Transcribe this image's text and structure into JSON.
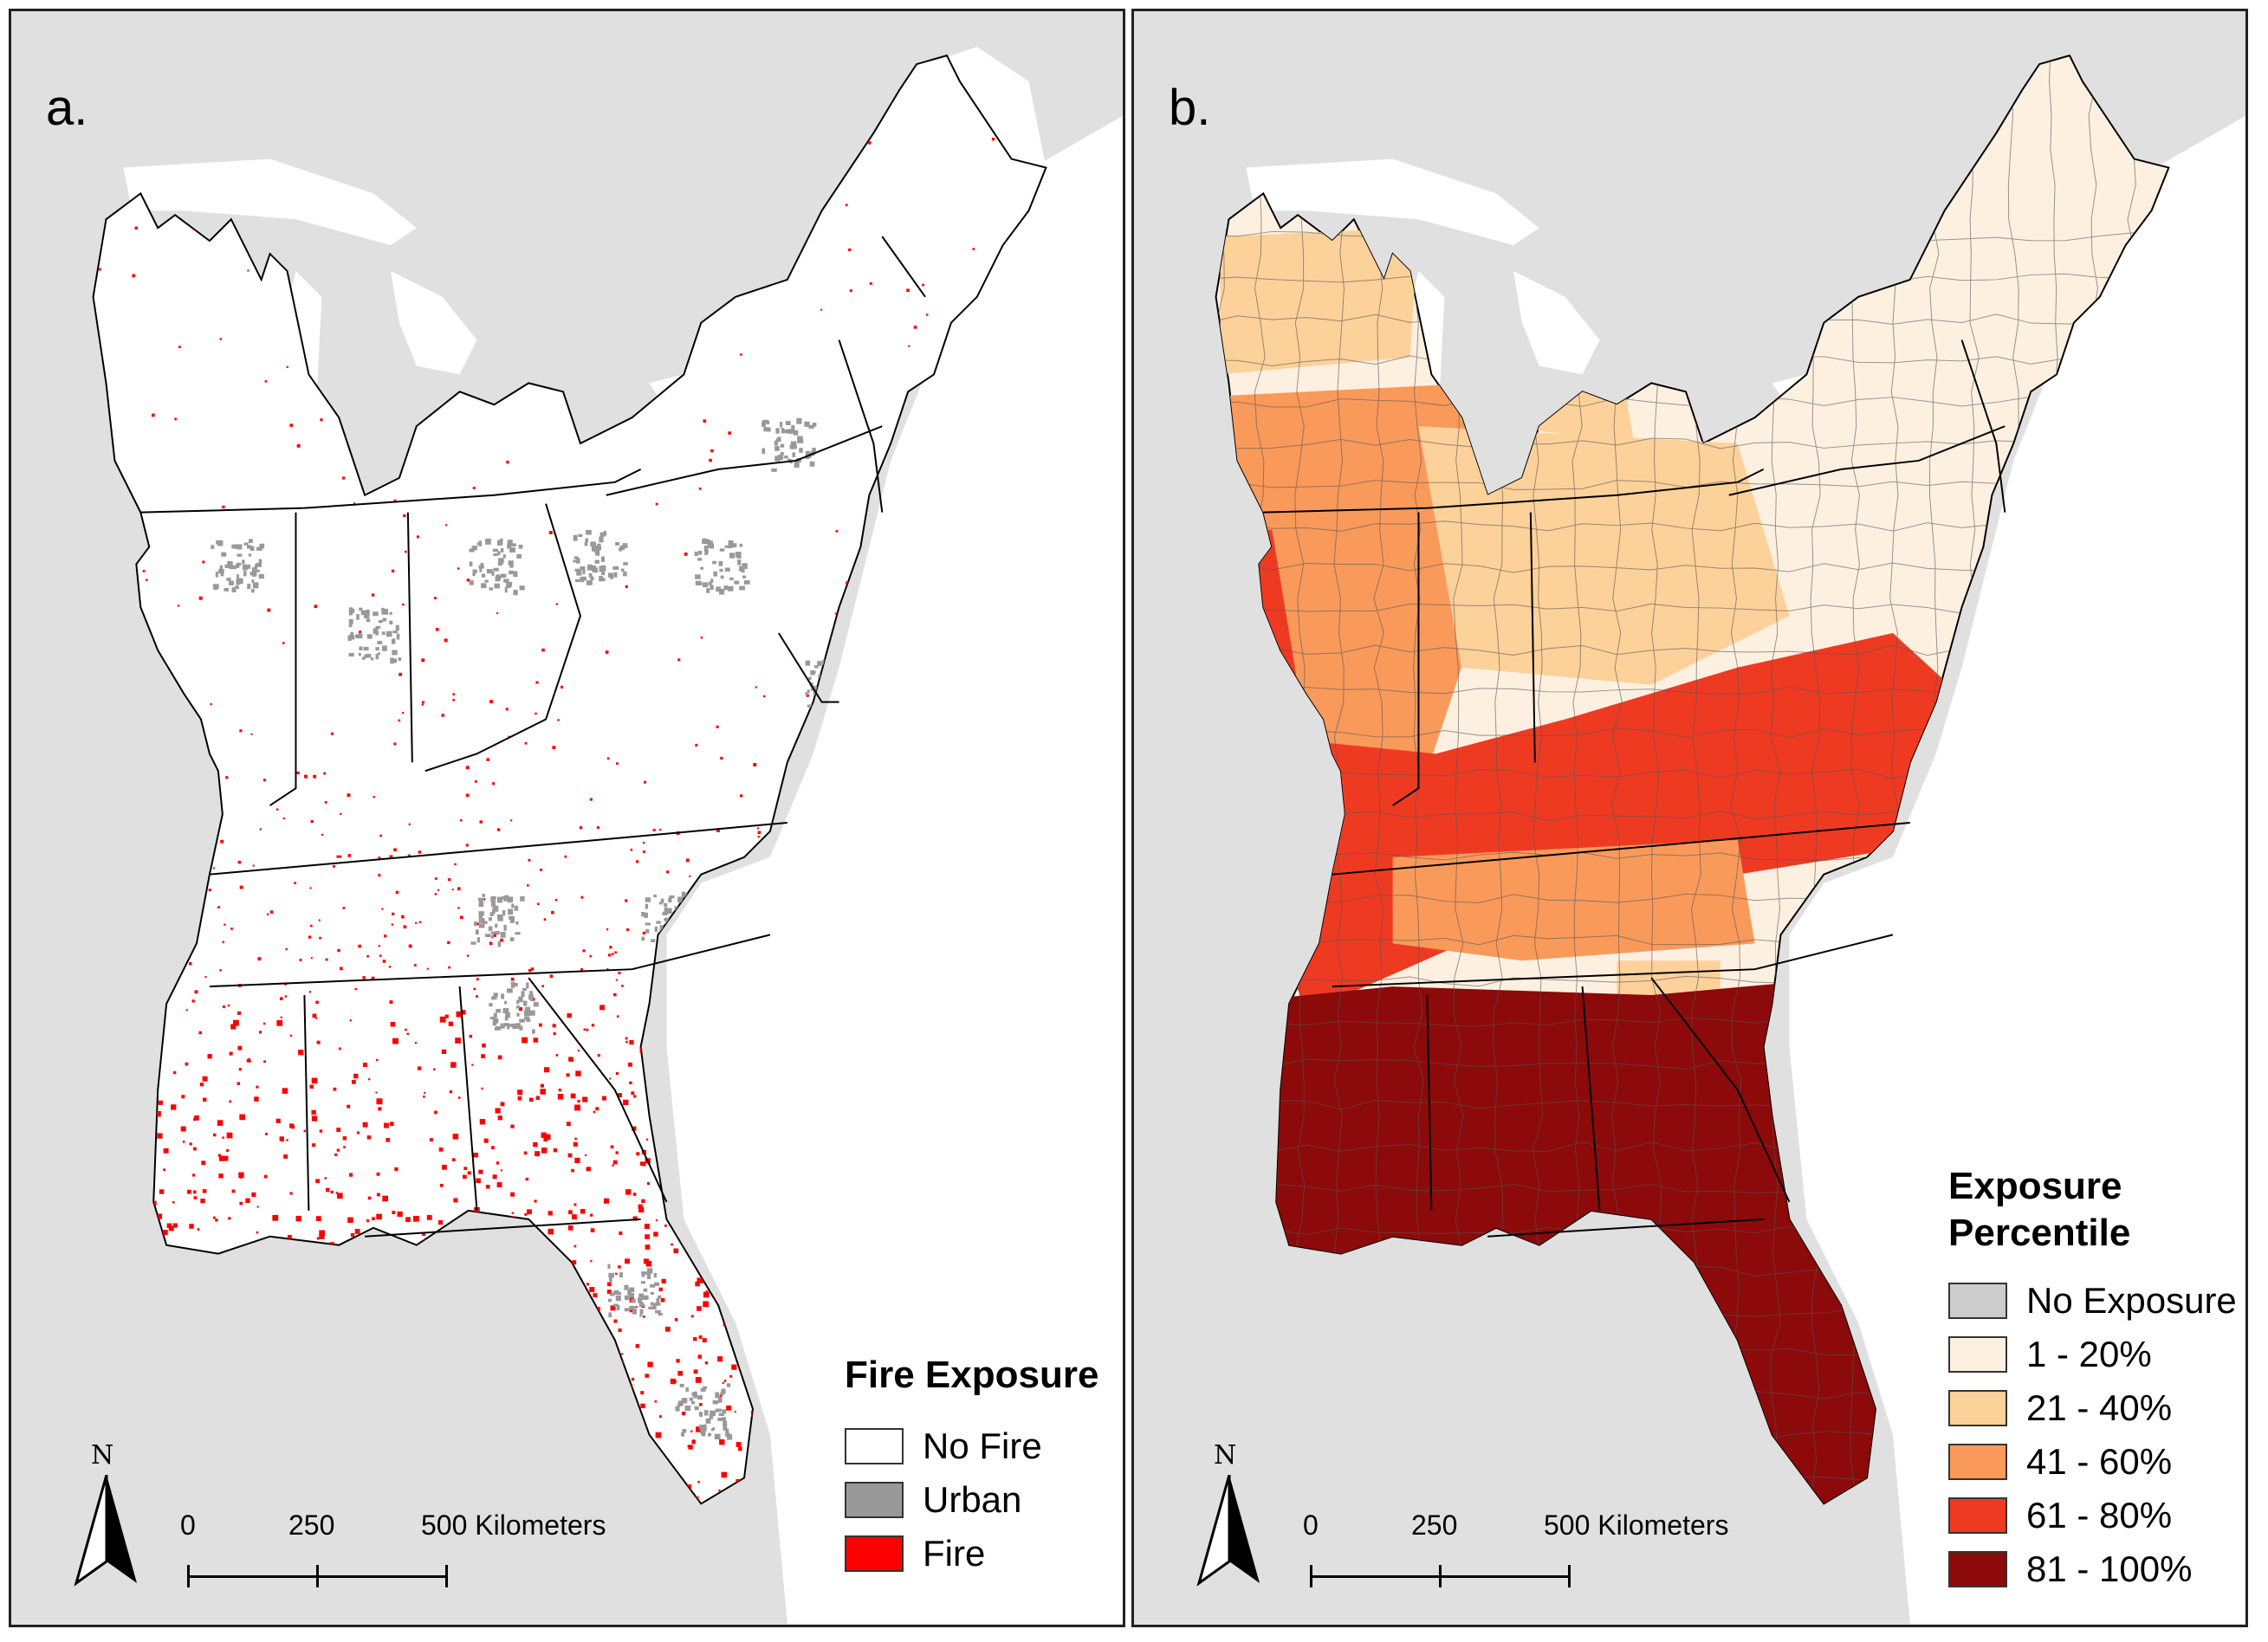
{
  "panels": [
    {
      "letter": "a.",
      "legend_title": "Fire Exposure",
      "legend": [
        {
          "label": "No Fire",
          "color": "#ffffff"
        },
        {
          "label": "Urban",
          "color": "#999999"
        },
        {
          "label": "Fire",
          "color": "#ff0000"
        }
      ]
    },
    {
      "letter": "b.",
      "legend_title_line1": "Exposure",
      "legend_title_line2": "Percentile",
      "legend": [
        {
          "label": "No Exposure",
          "color": "#cccccc"
        },
        {
          "label": "1 - 20%",
          "color": "#fdf0e0"
        },
        {
          "label": "21 - 40%",
          "color": "#fdd19a"
        },
        {
          "label": "41 - 60%",
          "color": "#f99a5b"
        },
        {
          "label": "61 - 80%",
          "color": "#ef3a22"
        },
        {
          "label": "81 - 100%",
          "color": "#8c0a0a"
        }
      ]
    }
  ],
  "scalebar": {
    "t0": "0",
    "t1": "250",
    "t2": "500 Kilometers"
  },
  "north": "N",
  "colors": {
    "land_bg": "#e0e0e0",
    "water": "#ffffff",
    "fire": "#ff0000",
    "urban": "#999999"
  }
}
